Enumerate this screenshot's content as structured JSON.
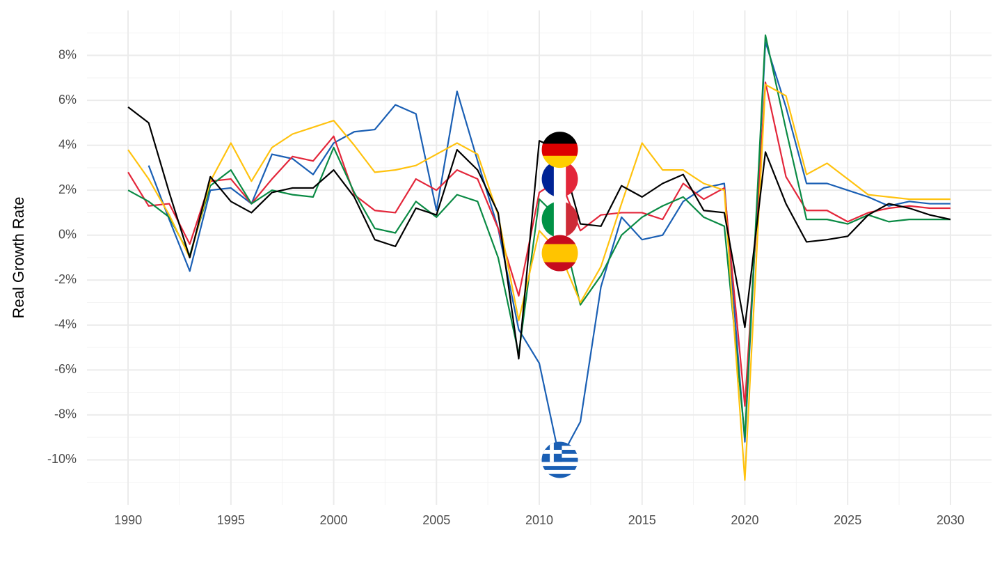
{
  "chart_data": {
    "type": "line",
    "ylabel": "Real Growth Rate",
    "x": [
      1990,
      1991,
      1992,
      1993,
      1994,
      1995,
      1996,
      1997,
      1998,
      1999,
      2000,
      2001,
      2002,
      2003,
      2004,
      2005,
      2006,
      2007,
      2008,
      2009,
      2010,
      2011,
      2012,
      2013,
      2014,
      2015,
      2016,
      2017,
      2018,
      2019,
      2020,
      2021,
      2022,
      2023,
      2024,
      2025,
      2026,
      2027,
      2028,
      2029,
      2030
    ],
    "xlim": [
      1988,
      2032
    ],
    "xticks": [
      1990,
      1995,
      2000,
      2005,
      2010,
      2015,
      2020,
      2025,
      2030
    ],
    "ylim": [
      -12,
      10
    ],
    "yticks": [
      {
        "value": -10,
        "label": "-10%"
      },
      {
        "value": -8,
        "label": "-8%"
      },
      {
        "value": -6,
        "label": "-6%"
      },
      {
        "value": -4,
        "label": "-4%"
      },
      {
        "value": -2,
        "label": "-2%"
      },
      {
        "value": 0,
        "label": "0%"
      },
      {
        "value": 2,
        "label": "2%"
      },
      {
        "value": 4,
        "label": "4%"
      },
      {
        "value": 6,
        "label": "6%"
      },
      {
        "value": 8,
        "label": "8%"
      }
    ],
    "grid": true,
    "series": [
      {
        "color": "#1a5fb4",
        "values": [
          null,
          3.1,
          0.7,
          -1.6,
          2.0,
          2.1,
          1.4,
          3.6,
          3.4,
          2.7,
          4.1,
          4.6,
          4.7,
          5.8,
          5.4,
          1.1,
          6.4,
          3.3,
          0.3,
          -4.2,
          -5.7,
          -10.0,
          -8.3,
          -2.3,
          0.8,
          -0.2,
          0.0,
          1.5,
          2.1,
          2.3,
          -9.2,
          8.6,
          5.7,
          2.3,
          2.3,
          2.0,
          1.7,
          1.3,
          1.5,
          1.4,
          1.4
        ]
      },
      {
        "color": "#e3263a",
        "values": [
          2.8,
          1.3,
          1.4,
          -0.4,
          2.4,
          2.5,
          1.4,
          2.5,
          3.5,
          3.3,
          4.4,
          1.8,
          1.1,
          1.0,
          2.5,
          2.0,
          2.9,
          2.5,
          0.3,
          -2.7,
          1.9,
          2.5,
          0.2,
          0.9,
          1.0,
          1.0,
          0.7,
          2.3,
          1.6,
          2.1,
          -7.6,
          6.8,
          2.6,
          1.1,
          1.1,
          0.6,
          1.0,
          1.2,
          1.3,
          1.2,
          1.2
        ]
      },
      {
        "color": "#0a8a44",
        "values": [
          2.0,
          1.5,
          0.8,
          -0.9,
          2.2,
          2.9,
          1.4,
          2.0,
          1.8,
          1.7,
          3.9,
          1.9,
          0.3,
          0.1,
          1.5,
          0.8,
          1.8,
          1.5,
          -1.0,
          -5.3,
          1.6,
          0.7,
          -3.1,
          -1.8,
          0.0,
          0.8,
          1.3,
          1.7,
          0.8,
          0.4,
          -9.0,
          8.9,
          4.7,
          0.7,
          0.7,
          0.5,
          0.9,
          0.6,
          0.7,
          0.7,
          0.7
        ]
      },
      {
        "color": "#ffc20e",
        "values": [
          3.8,
          2.5,
          0.9,
          -1.0,
          2.4,
          4.1,
          2.4,
          3.9,
          4.5,
          4.8,
          5.1,
          4.0,
          2.8,
          2.9,
          3.1,
          3.6,
          4.1,
          3.6,
          0.9,
          -3.8,
          0.2,
          -0.8,
          -3.0,
          -1.4,
          1.4,
          4.1,
          2.9,
          2.9,
          2.3,
          2.0,
          -10.9,
          6.7,
          6.2,
          2.7,
          3.2,
          2.5,
          1.8,
          1.7,
          1.6,
          1.6,
          1.6
        ]
      },
      {
        "color": "#000000",
        "values": [
          5.7,
          5.0,
          1.9,
          -1.0,
          2.6,
          1.5,
          1.0,
          1.9,
          2.1,
          2.1,
          2.9,
          1.7,
          -0.2,
          -0.5,
          1.2,
          0.9,
          3.8,
          2.9,
          1.0,
          -5.5,
          4.2,
          3.8,
          0.5,
          0.4,
          2.2,
          1.7,
          2.3,
          2.7,
          1.1,
          1.0,
          -4.1,
          3.7,
          1.4,
          -0.3,
          -0.2,
          -0.05,
          0.9,
          1.4,
          1.2,
          0.9,
          0.7
        ]
      }
    ]
  }
}
